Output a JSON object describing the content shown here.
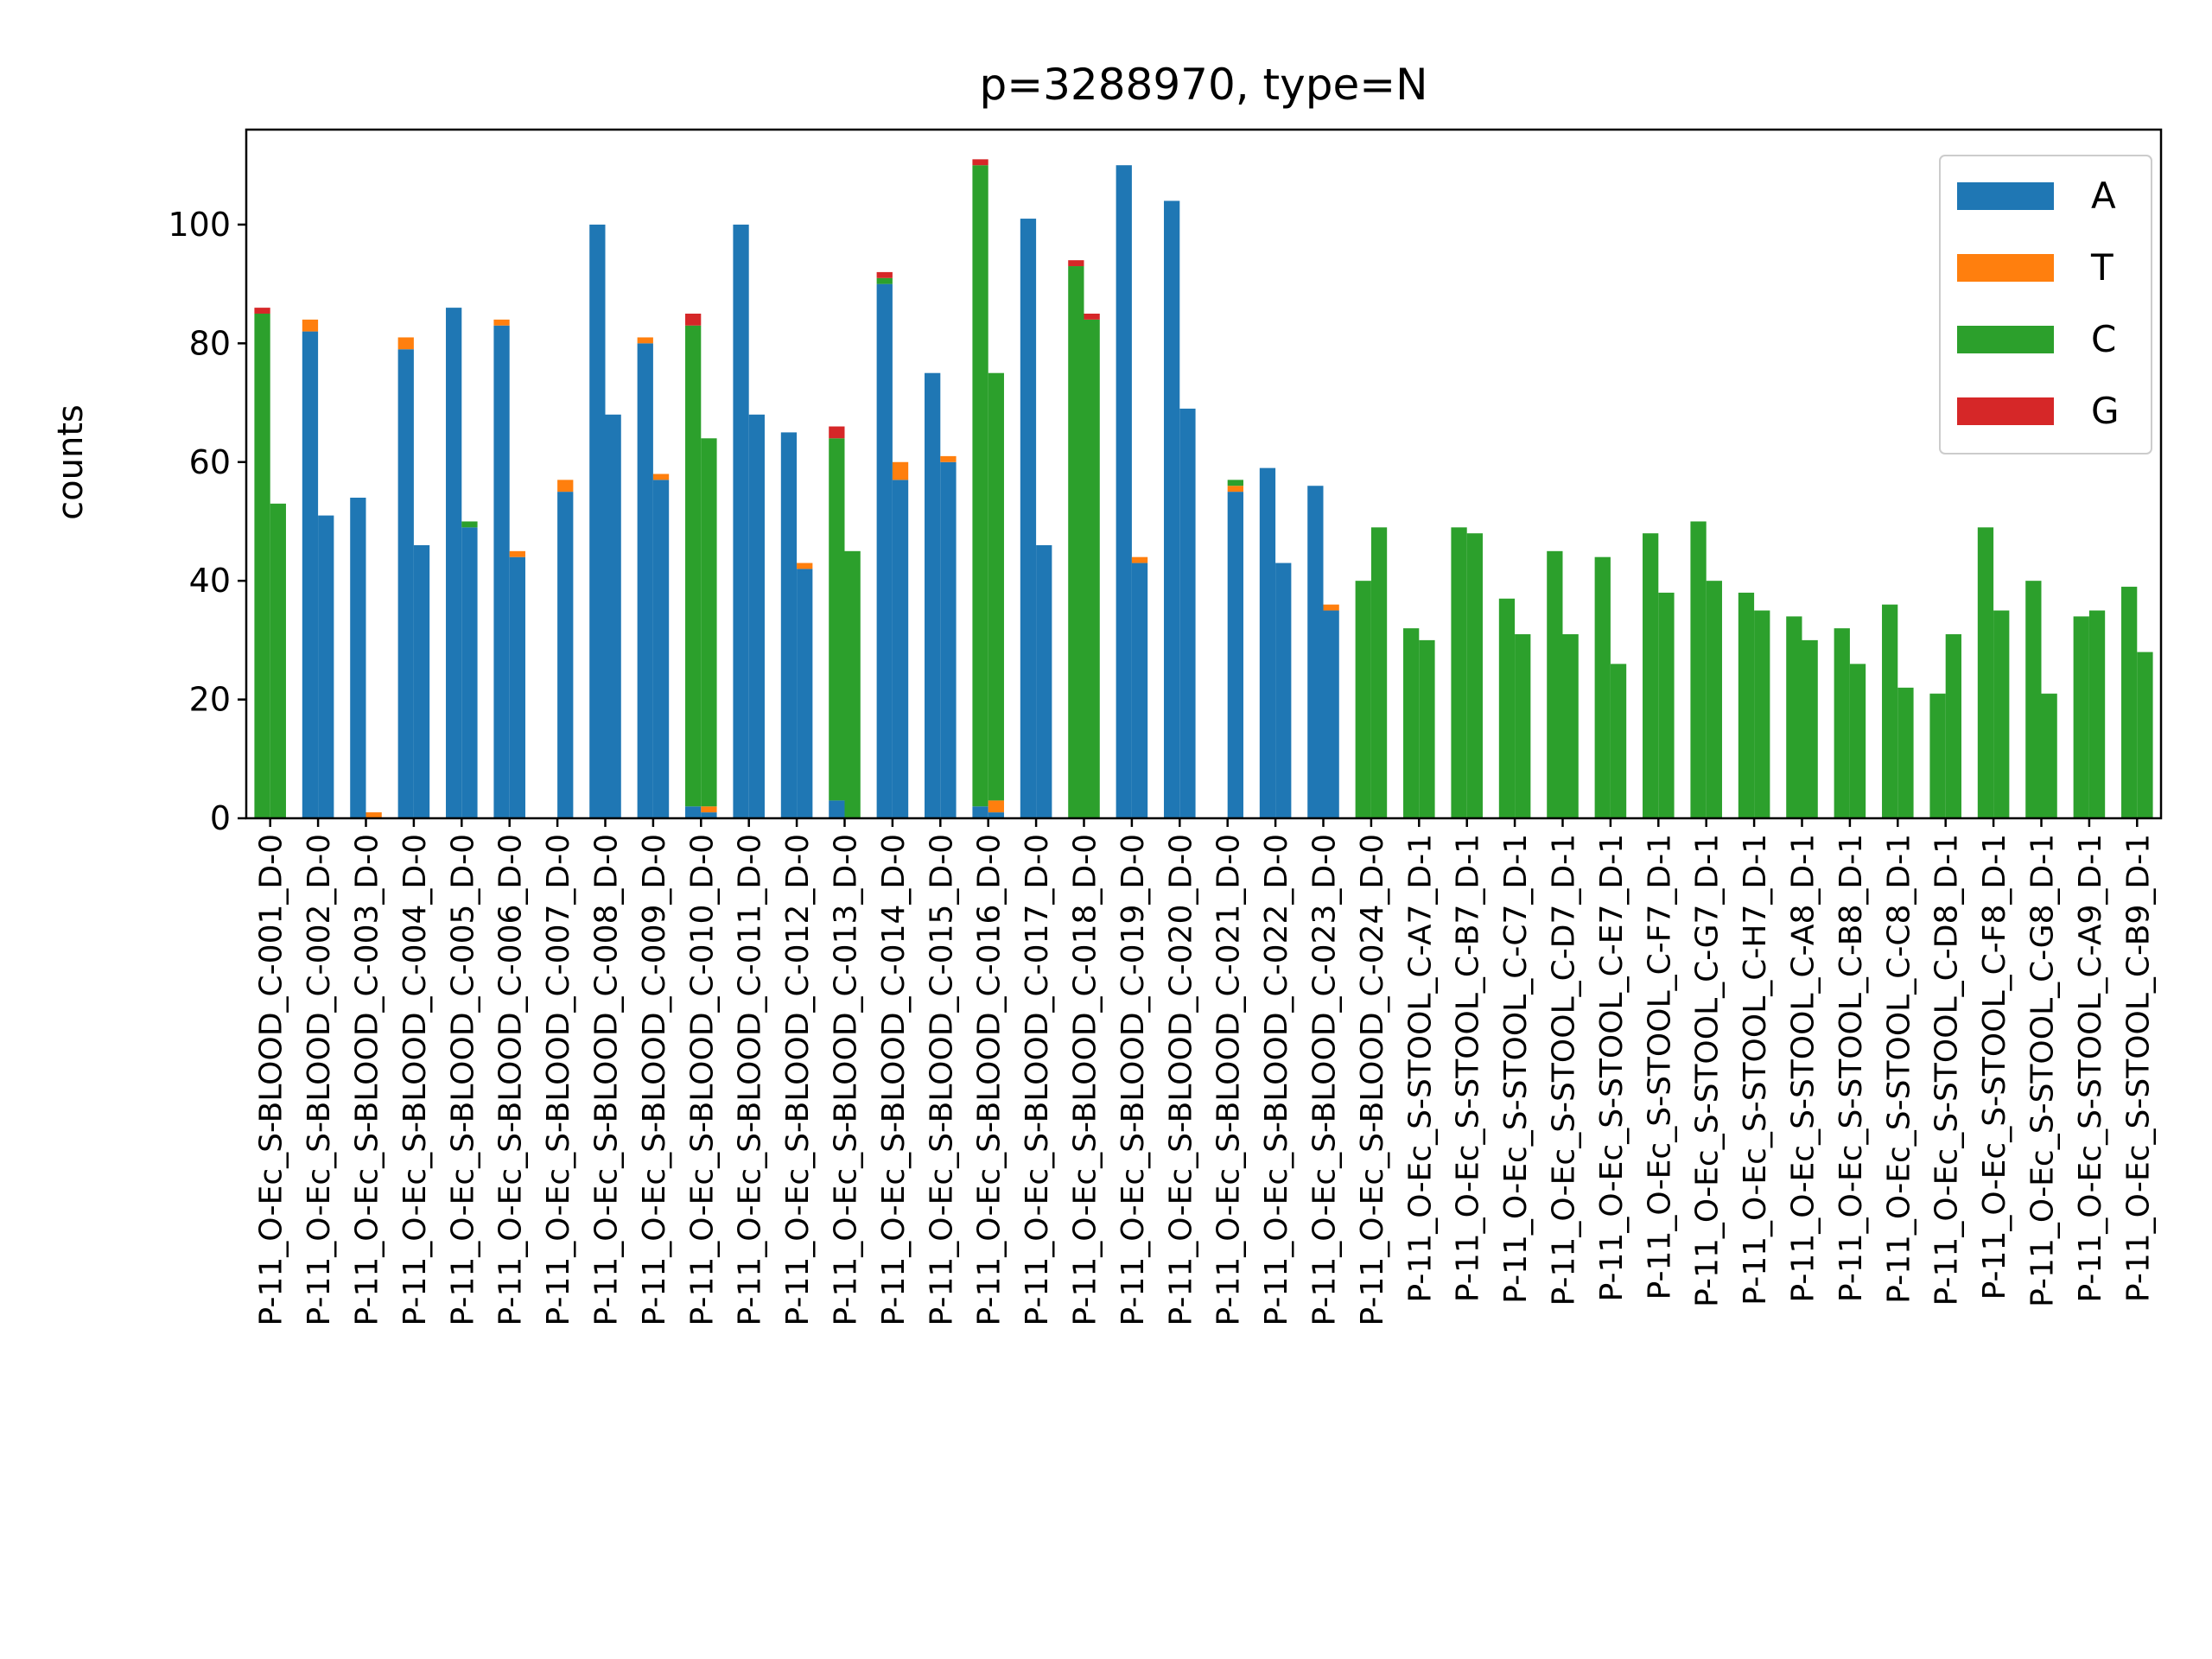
{
  "chart_data": {
    "type": "bar",
    "title": "p=3288970, type=N",
    "xlabel": "",
    "ylabel": "counts",
    "ylim": [
      0,
      116
    ],
    "yticks": [
      0,
      20,
      40,
      60,
      80,
      100
    ],
    "grid": false,
    "legend_position": "top-right",
    "stacked": true,
    "bars_per_category": 2,
    "categories": [
      "P-11_O-Ec_S-BLOOD_C-001_D-0",
      "P-11_O-Ec_S-BLOOD_C-002_D-0",
      "P-11_O-Ec_S-BLOOD_C-003_D-0",
      "P-11_O-Ec_S-BLOOD_C-004_D-0",
      "P-11_O-Ec_S-BLOOD_C-005_D-0",
      "P-11_O-Ec_S-BLOOD_C-006_D-0",
      "P-11_O-Ec_S-BLOOD_C-007_D-0",
      "P-11_O-Ec_S-BLOOD_C-008_D-0",
      "P-11_O-Ec_S-BLOOD_C-009_D-0",
      "P-11_O-Ec_S-BLOOD_C-010_D-0",
      "P-11_O-Ec_S-BLOOD_C-011_D-0",
      "P-11_O-Ec_S-BLOOD_C-012_D-0",
      "P-11_O-Ec_S-BLOOD_C-013_D-0",
      "P-11_O-Ec_S-BLOOD_C-014_D-0",
      "P-11_O-Ec_S-BLOOD_C-015_D-0",
      "P-11_O-Ec_S-BLOOD_C-016_D-0",
      "P-11_O-Ec_S-BLOOD_C-017_D-0",
      "P-11_O-Ec_S-BLOOD_C-018_D-0",
      "P-11_O-Ec_S-BLOOD_C-019_D-0",
      "P-11_O-Ec_S-BLOOD_C-020_D-0",
      "P-11_O-Ec_S-BLOOD_C-021_D-0",
      "P-11_O-Ec_S-BLOOD_C-022_D-0",
      "P-11_O-Ec_S-BLOOD_C-023_D-0",
      "P-11_O-Ec_S-BLOOD_C-024_D-0",
      "P-11_O-Ec_S-STOOL_C-A7_D-1",
      "P-11_O-Ec_S-STOOL_C-B7_D-1",
      "P-11_O-Ec_S-STOOL_C-C7_D-1",
      "P-11_O-Ec_S-STOOL_C-D7_D-1",
      "P-11_O-Ec_S-STOOL_C-E7_D-1",
      "P-11_O-Ec_S-STOOL_C-F7_D-1",
      "P-11_O-Ec_S-STOOL_C-G7_D-1",
      "P-11_O-Ec_S-STOOL_C-H7_D-1",
      "P-11_O-Ec_S-STOOL_C-A8_D-1",
      "P-11_O-Ec_S-STOOL_C-B8_D-1",
      "P-11_O-Ec_S-STOOL_C-C8_D-1",
      "P-11_O-Ec_S-STOOL_C-D8_D-1",
      "P-11_O-Ec_S-STOOL_C-F8_D-1",
      "P-11_O-Ec_S-STOOL_C-G8_D-1",
      "P-11_O-Ec_S-STOOL_C-A9_D-1",
      "P-11_O-Ec_S-STOOL_C-B9_D-1"
    ],
    "series": [
      {
        "name": "A",
        "color": "#1f77b4",
        "values": [
          [
            0,
            0
          ],
          [
            82,
            51
          ],
          [
            54,
            0
          ],
          [
            79,
            46
          ],
          [
            86,
            49
          ],
          [
            83,
            44
          ],
          [
            0,
            55
          ],
          [
            100,
            68
          ],
          [
            80,
            57
          ],
          [
            2,
            1
          ],
          [
            100,
            68
          ],
          [
            65,
            42
          ],
          [
            3,
            0
          ],
          [
            90,
            57
          ],
          [
            75,
            60
          ],
          [
            2,
            1
          ],
          [
            101,
            46
          ],
          [
            0,
            0
          ],
          [
            110,
            43
          ],
          [
            104,
            69
          ],
          [
            0,
            55
          ],
          [
            59,
            43
          ],
          [
            56,
            35
          ],
          [
            0,
            0
          ],
          [
            0,
            0
          ],
          [
            0,
            0
          ],
          [
            0,
            0
          ],
          [
            0,
            0
          ],
          [
            0,
            0
          ],
          [
            0,
            0
          ],
          [
            0,
            0
          ],
          [
            0,
            0
          ],
          [
            0,
            0
          ],
          [
            0,
            0
          ],
          [
            0,
            0
          ],
          [
            0,
            0
          ],
          [
            0,
            0
          ],
          [
            0,
            0
          ],
          [
            0,
            0
          ],
          [
            0,
            0
          ]
        ]
      },
      {
        "name": "T",
        "color": "#ff7f0e",
        "values": [
          [
            0,
            0
          ],
          [
            2,
            0
          ],
          [
            0,
            1
          ],
          [
            2,
            0
          ],
          [
            0,
            0
          ],
          [
            1,
            1
          ],
          [
            0,
            2
          ],
          [
            0,
            0
          ],
          [
            1,
            1
          ],
          [
            0,
            1
          ],
          [
            0,
            0
          ],
          [
            0,
            1
          ],
          [
            0,
            0
          ],
          [
            0,
            3
          ],
          [
            0,
            1
          ],
          [
            0,
            2
          ],
          [
            0,
            0
          ],
          [
            0,
            0
          ],
          [
            0,
            1
          ],
          [
            0,
            0
          ],
          [
            0,
            1
          ],
          [
            0,
            0
          ],
          [
            0,
            1
          ],
          [
            0,
            0
          ],
          [
            0,
            0
          ],
          [
            0,
            0
          ],
          [
            0,
            0
          ],
          [
            0,
            0
          ],
          [
            0,
            0
          ],
          [
            0,
            0
          ],
          [
            0,
            0
          ],
          [
            0,
            0
          ],
          [
            0,
            0
          ],
          [
            0,
            0
          ],
          [
            0,
            0
          ],
          [
            0,
            0
          ],
          [
            0,
            0
          ],
          [
            0,
            0
          ],
          [
            0,
            0
          ],
          [
            0,
            0
          ]
        ]
      },
      {
        "name": "C",
        "color": "#2ca02c",
        "values": [
          [
            85,
            53
          ],
          [
            0,
            0
          ],
          [
            0,
            0
          ],
          [
            0,
            0
          ],
          [
            0,
            1
          ],
          [
            0,
            0
          ],
          [
            0,
            0
          ],
          [
            0,
            0
          ],
          [
            0,
            0
          ],
          [
            81,
            62
          ],
          [
            0,
            0
          ],
          [
            0,
            0
          ],
          [
            61,
            45
          ],
          [
            1,
            0
          ],
          [
            0,
            0
          ],
          [
            108,
            72
          ],
          [
            0,
            0
          ],
          [
            93,
            84
          ],
          [
            0,
            0
          ],
          [
            0,
            0
          ],
          [
            0,
            1
          ],
          [
            0,
            0
          ],
          [
            0,
            0
          ],
          [
            40,
            49
          ],
          [
            32,
            30
          ],
          [
            49,
            48
          ],
          [
            37,
            31
          ],
          [
            45,
            31
          ],
          [
            44,
            26
          ],
          [
            48,
            38
          ],
          [
            50,
            40
          ],
          [
            38,
            35
          ],
          [
            34,
            30
          ],
          [
            32,
            26
          ],
          [
            36,
            22
          ],
          [
            21,
            31
          ],
          [
            49,
            35
          ],
          [
            40,
            21
          ],
          [
            34,
            35
          ],
          [
            39,
            28
          ]
        ]
      },
      {
        "name": "G",
        "color": "#d62728",
        "values": [
          [
            1,
            0
          ],
          [
            0,
            0
          ],
          [
            0,
            0
          ],
          [
            0,
            0
          ],
          [
            0,
            0
          ],
          [
            0,
            0
          ],
          [
            0,
            0
          ],
          [
            0,
            0
          ],
          [
            0,
            0
          ],
          [
            2,
            0
          ],
          [
            0,
            0
          ],
          [
            0,
            0
          ],
          [
            2,
            0
          ],
          [
            1,
            0
          ],
          [
            0,
            0
          ],
          [
            1,
            0
          ],
          [
            0,
            0
          ],
          [
            1,
            1
          ],
          [
            0,
            0
          ],
          [
            0,
            0
          ],
          [
            0,
            0
          ],
          [
            0,
            0
          ],
          [
            0,
            0
          ],
          [
            0,
            0
          ],
          [
            0,
            0
          ],
          [
            0,
            0
          ],
          [
            0,
            0
          ],
          [
            0,
            0
          ],
          [
            0,
            0
          ],
          [
            0,
            0
          ],
          [
            0,
            0
          ],
          [
            0,
            0
          ],
          [
            0,
            0
          ],
          [
            0,
            0
          ],
          [
            0,
            0
          ],
          [
            0,
            0
          ],
          [
            0,
            0
          ],
          [
            0,
            0
          ],
          [
            0,
            0
          ],
          [
            0,
            0
          ]
        ]
      }
    ]
  }
}
